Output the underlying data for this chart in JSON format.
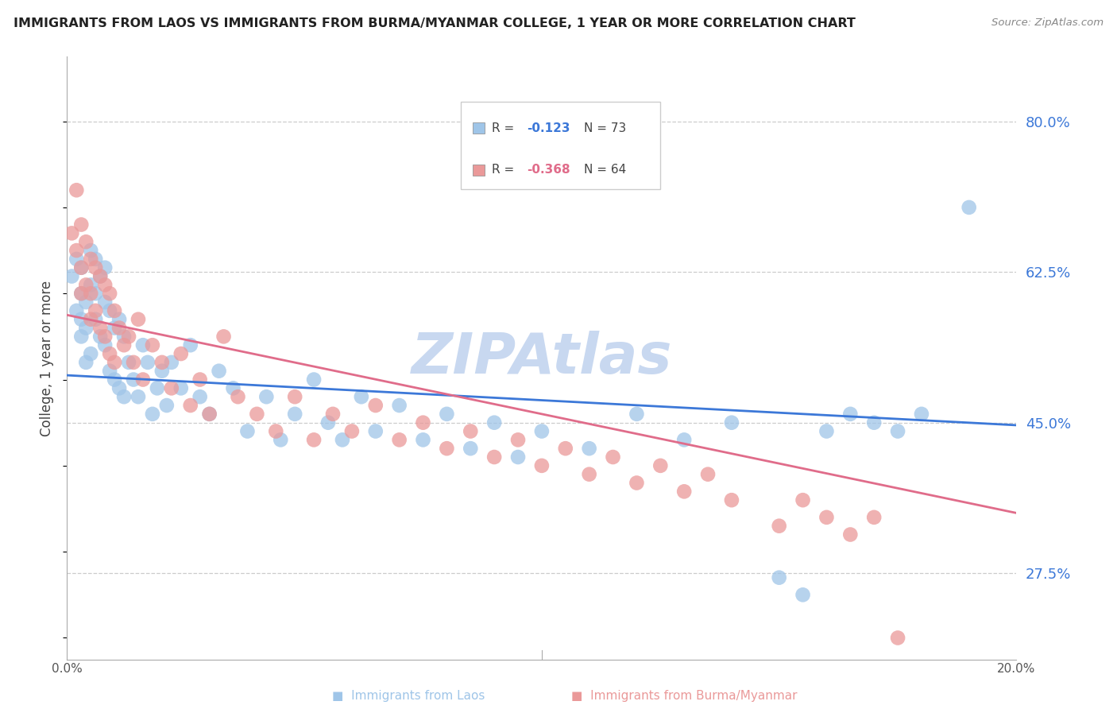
{
  "title": "IMMIGRANTS FROM LAOS VS IMMIGRANTS FROM BURMA/MYANMAR COLLEGE, 1 YEAR OR MORE CORRELATION CHART",
  "source": "Source: ZipAtlas.com",
  "ylabel": "College, 1 year or more",
  "ytick_values": [
    0.8,
    0.625,
    0.45,
    0.275
  ],
  "xlim": [
    0.0,
    0.2
  ],
  "ylim": [
    0.175,
    0.875
  ],
  "laos_R": -0.123,
  "laos_N": 73,
  "burma_R": -0.368,
  "burma_N": 64,
  "laos_color": "#9fc5e8",
  "burma_color": "#ea9999",
  "laos_line_color": "#3c78d8",
  "burma_line_color": "#e06c8a",
  "watermark": "ZIPAtlas",
  "watermark_color": "#c8d8f0",
  "legend_R_value_laos": "-0.123",
  "legend_N_laos": 73,
  "legend_R_value_burma": "-0.368",
  "legend_N_burma": 64,
  "laos_x": [
    0.001,
    0.002,
    0.002,
    0.003,
    0.003,
    0.003,
    0.003,
    0.004,
    0.004,
    0.004,
    0.005,
    0.005,
    0.005,
    0.006,
    0.006,
    0.006,
    0.007,
    0.007,
    0.008,
    0.008,
    0.008,
    0.009,
    0.009,
    0.01,
    0.01,
    0.011,
    0.011,
    0.012,
    0.012,
    0.013,
    0.014,
    0.015,
    0.016,
    0.017,
    0.018,
    0.019,
    0.02,
    0.021,
    0.022,
    0.024,
    0.026,
    0.028,
    0.03,
    0.032,
    0.035,
    0.038,
    0.042,
    0.045,
    0.048,
    0.052,
    0.055,
    0.058,
    0.062,
    0.065,
    0.07,
    0.075,
    0.08,
    0.085,
    0.09,
    0.095,
    0.1,
    0.11,
    0.12,
    0.13,
    0.14,
    0.15,
    0.155,
    0.16,
    0.165,
    0.17,
    0.175,
    0.18,
    0.19
  ],
  "laos_y": [
    0.62,
    0.64,
    0.58,
    0.63,
    0.6,
    0.57,
    0.55,
    0.59,
    0.56,
    0.52,
    0.65,
    0.61,
    0.53,
    0.64,
    0.6,
    0.57,
    0.62,
    0.55,
    0.63,
    0.59,
    0.54,
    0.58,
    0.51,
    0.56,
    0.5,
    0.57,
    0.49,
    0.55,
    0.48,
    0.52,
    0.5,
    0.48,
    0.54,
    0.52,
    0.46,
    0.49,
    0.51,
    0.47,
    0.52,
    0.49,
    0.54,
    0.48,
    0.46,
    0.51,
    0.49,
    0.44,
    0.48,
    0.43,
    0.46,
    0.5,
    0.45,
    0.43,
    0.48,
    0.44,
    0.47,
    0.43,
    0.46,
    0.42,
    0.45,
    0.41,
    0.44,
    0.42,
    0.46,
    0.43,
    0.45,
    0.27,
    0.25,
    0.44,
    0.46,
    0.45,
    0.44,
    0.46,
    0.7
  ],
  "burma_x": [
    0.001,
    0.002,
    0.002,
    0.003,
    0.003,
    0.003,
    0.004,
    0.004,
    0.005,
    0.005,
    0.005,
    0.006,
    0.006,
    0.007,
    0.007,
    0.008,
    0.008,
    0.009,
    0.009,
    0.01,
    0.01,
    0.011,
    0.012,
    0.013,
    0.014,
    0.015,
    0.016,
    0.018,
    0.02,
    0.022,
    0.024,
    0.026,
    0.028,
    0.03,
    0.033,
    0.036,
    0.04,
    0.044,
    0.048,
    0.052,
    0.056,
    0.06,
    0.065,
    0.07,
    0.075,
    0.08,
    0.085,
    0.09,
    0.095,
    0.1,
    0.105,
    0.11,
    0.115,
    0.12,
    0.125,
    0.13,
    0.135,
    0.14,
    0.15,
    0.155,
    0.16,
    0.165,
    0.17,
    0.175
  ],
  "burma_y": [
    0.67,
    0.72,
    0.65,
    0.68,
    0.63,
    0.6,
    0.66,
    0.61,
    0.64,
    0.6,
    0.57,
    0.63,
    0.58,
    0.62,
    0.56,
    0.61,
    0.55,
    0.6,
    0.53,
    0.58,
    0.52,
    0.56,
    0.54,
    0.55,
    0.52,
    0.57,
    0.5,
    0.54,
    0.52,
    0.49,
    0.53,
    0.47,
    0.5,
    0.46,
    0.55,
    0.48,
    0.46,
    0.44,
    0.48,
    0.43,
    0.46,
    0.44,
    0.47,
    0.43,
    0.45,
    0.42,
    0.44,
    0.41,
    0.43,
    0.4,
    0.42,
    0.39,
    0.41,
    0.38,
    0.4,
    0.37,
    0.39,
    0.36,
    0.33,
    0.36,
    0.34,
    0.32,
    0.34,
    0.2
  ]
}
